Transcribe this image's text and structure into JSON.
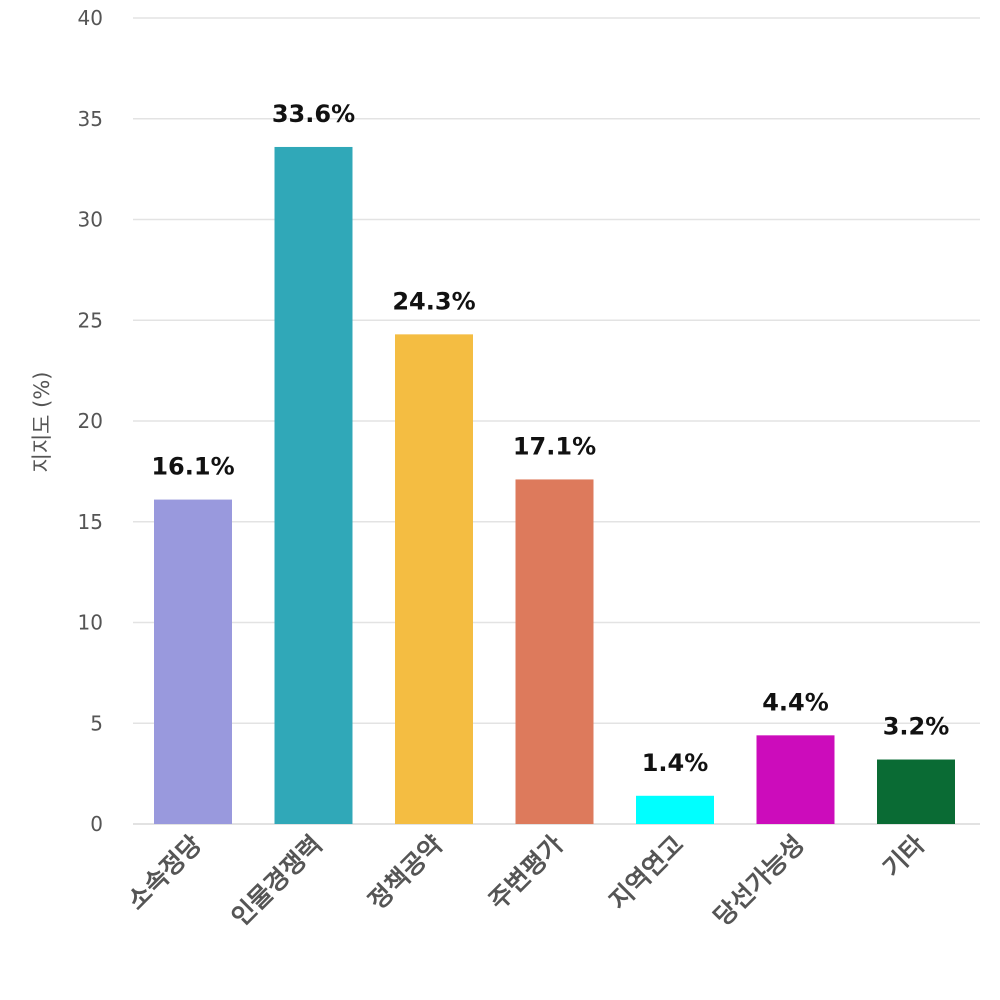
{
  "chart_data": {
    "type": "bar",
    "categories": [
      "소속정당",
      "인물경쟁력",
      "정책공약",
      "주변평가",
      "지역연고",
      "당선가능성",
      "기타"
    ],
    "values": [
      16.1,
      33.6,
      24.3,
      17.1,
      1.4,
      4.4,
      3.2
    ],
    "data_labels": [
      "16.1%",
      "33.6%",
      "24.3%",
      "17.1%",
      "1.4%",
      "4.4%",
      "3.2%"
    ],
    "colors": [
      "#9999dd",
      "#30a8b8",
      "#f4bd42",
      "#dd7a5c",
      "#00ffff",
      "#cc0cbb",
      "#0a6b34"
    ],
    "ylabel": "지지도 (%)",
    "xlabel": "",
    "ylim": [
      0,
      40
    ],
    "yticks": [
      0,
      5,
      10,
      15,
      20,
      25,
      30,
      35,
      40
    ],
    "grid": true,
    "legend": "none"
  }
}
